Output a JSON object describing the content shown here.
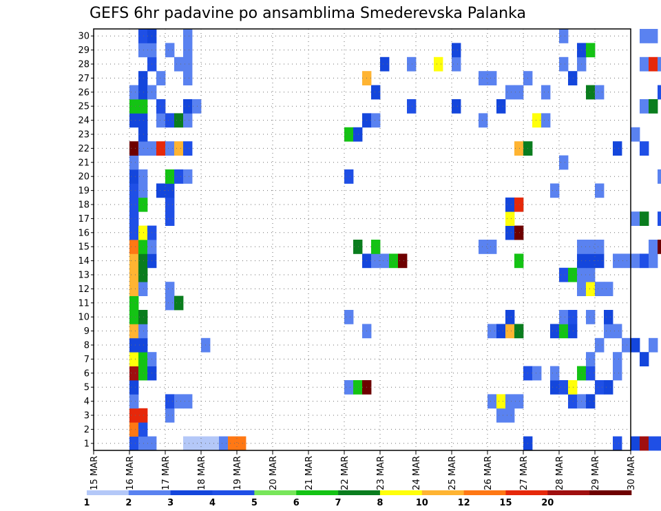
{
  "chart_data": {
    "type": "heatmap",
    "title": "GEFS 6hr padavine po ansamblima Smederevska Palanka",
    "xlabel": "",
    "ylabel": "",
    "x_ticks": [
      "15 MAR",
      "16 MAR",
      "17 MAR",
      "18 MAR",
      "19 MAR",
      "20 MAR",
      "21 MAR",
      "22 MAR",
      "23 MAR",
      "24 MAR",
      "25 MAR",
      "26 MAR",
      "27 MAR",
      "28 MAR",
      "29 MAR",
      "30 MAR"
    ],
    "y_ticks": [
      "1",
      "2",
      "3",
      "4",
      "5",
      "6",
      "7",
      "8",
      "9",
      "10",
      "11",
      "12",
      "13",
      "14",
      "15",
      "16",
      "17",
      "18",
      "19",
      "20",
      "21",
      "22",
      "23",
      "24",
      "25",
      "26",
      "27",
      "28",
      "29",
      "30"
    ],
    "x_range": [
      "15 MAR 00z",
      "30 MAR 00z"
    ],
    "y_range": [
      0,
      30
    ],
    "steps_per_day": 4,
    "grid": true,
    "colorbar": {
      "position": "bottom",
      "labels": [
        "1",
        "2",
        "3",
        "4",
        "5",
        "6",
        "7",
        "8",
        "10",
        "12",
        "15",
        "20"
      ],
      "colors": [
        "#b4c8f8",
        "#5a82f0",
        "#1446dc",
        "#1f4fe6",
        "#78e65a",
        "#14c314",
        "#0a7d1e",
        "#ffff0a",
        "#ffb432",
        "#ff7814",
        "#e6280a",
        "#a00f0f",
        "#6e0000"
      ]
    },
    "cells": [
      {
        "m": 1,
        "s": [
          [
            4,
            3
          ],
          [
            5,
            1
          ],
          [
            6,
            1
          ],
          [
            10,
            0
          ],
          [
            11,
            0
          ],
          [
            12,
            0
          ],
          [
            13,
            0
          ],
          [
            14,
            1
          ],
          [
            15,
            9
          ],
          [
            16,
            9
          ]
        ]
      },
      {
        "m": 2,
        "s": [
          [
            4,
            9
          ],
          [
            5,
            3
          ]
        ]
      },
      {
        "m": 3,
        "s": [
          [
            4,
            10
          ],
          [
            5,
            10
          ],
          [
            8,
            1
          ]
        ]
      },
      {
        "m": 4,
        "s": [
          [
            4,
            1
          ],
          [
            8,
            3
          ],
          [
            9,
            1
          ],
          [
            10,
            1
          ]
        ]
      },
      {
        "m": 5,
        "s": [
          [
            4,
            2
          ]
        ]
      },
      {
        "m": 6,
        "s": [
          [
            4,
            11
          ],
          [
            5,
            5
          ],
          [
            6,
            2
          ]
        ]
      },
      {
        "m": 7,
        "s": [
          [
            4,
            7
          ],
          [
            5,
            5
          ],
          [
            6,
            1
          ]
        ]
      },
      {
        "m": 8,
        "s": [
          [
            4,
            2
          ],
          [
            5,
            2
          ],
          [
            12,
            1
          ]
        ]
      },
      {
        "m": 9,
        "s": [
          [
            4,
            8
          ],
          [
            5,
            1
          ]
        ]
      },
      {
        "m": 10,
        "s": [
          [
            4,
            5
          ],
          [
            5,
            6
          ]
        ]
      },
      {
        "m": 11,
        "s": [
          [
            4,
            5
          ],
          [
            8,
            1
          ],
          [
            9,
            6
          ]
        ]
      },
      {
        "m": 12,
        "s": [
          [
            4,
            8
          ],
          [
            5,
            1
          ],
          [
            8,
            1
          ]
        ]
      },
      {
        "m": 13,
        "s": [
          [
            4,
            8
          ],
          [
            5,
            6
          ]
        ]
      },
      {
        "m": 14,
        "s": [
          [
            4,
            8
          ],
          [
            5,
            6
          ],
          [
            6,
            2
          ]
        ]
      },
      {
        "m": 15,
        "s": [
          [
            4,
            9
          ],
          [
            5,
            5
          ],
          [
            6,
            1
          ]
        ]
      },
      {
        "m": 16,
        "s": [
          [
            4,
            3
          ],
          [
            5,
            7
          ],
          [
            6,
            3
          ]
        ]
      },
      {
        "m": 17,
        "s": [
          [
            4,
            3
          ],
          [
            8,
            3
          ]
        ]
      },
      {
        "m": 18,
        "s": [
          [
            4,
            3
          ],
          [
            5,
            5
          ],
          [
            8,
            3
          ]
        ]
      },
      {
        "m": 19,
        "s": [
          [
            4,
            3
          ],
          [
            5,
            1
          ],
          [
            7,
            2
          ],
          [
            8,
            2
          ]
        ]
      },
      {
        "m": 20,
        "s": [
          [
            4,
            2
          ],
          [
            5,
            1
          ],
          [
            8,
            5
          ],
          [
            9,
            3
          ],
          [
            10,
            1
          ]
        ]
      },
      {
        "m": 21,
        "s": [
          [
            4,
            1
          ]
        ]
      },
      {
        "m": 22,
        "s": [
          [
            4,
            12
          ],
          [
            5,
            1
          ],
          [
            6,
            1
          ],
          [
            7,
            10
          ],
          [
            8,
            1
          ],
          [
            9,
            8
          ],
          [
            10,
            3
          ]
        ]
      },
      {
        "m": 23,
        "s": [
          [
            5,
            2
          ]
        ]
      },
      {
        "m": 24,
        "s": [
          [
            4,
            2
          ],
          [
            5,
            2
          ],
          [
            7,
            1
          ],
          [
            8,
            3
          ],
          [
            9,
            6
          ],
          [
            10,
            1
          ]
        ]
      },
      {
        "m": 25,
        "s": [
          [
            4,
            5
          ],
          [
            5,
            5
          ],
          [
            7,
            3
          ],
          [
            10,
            2
          ],
          [
            11,
            1
          ]
        ]
      },
      {
        "m": 26,
        "s": [
          [
            4,
            1
          ],
          [
            5,
            2
          ],
          [
            6,
            1
          ]
        ]
      },
      {
        "m": 27,
        "s": [
          [
            5,
            2
          ],
          [
            7,
            1
          ],
          [
            10,
            1
          ]
        ]
      },
      {
        "m": 28,
        "s": [
          [
            6,
            3
          ],
          [
            9,
            1
          ],
          [
            10,
            1
          ]
        ]
      },
      {
        "m": 29,
        "s": [
          [
            5,
            1
          ],
          [
            6,
            1
          ],
          [
            8,
            1
          ],
          [
            10,
            1
          ]
        ]
      },
      {
        "m": 30,
        "s": [
          [
            5,
            3
          ],
          [
            6,
            2
          ],
          [
            10,
            1
          ]
        ]
      }
    ],
    "cells_late": [
      {
        "m": 1,
        "s": [
          [
            48,
            2
          ],
          [
            58,
            3
          ],
          [
            60,
            2
          ],
          [
            61,
            11
          ],
          [
            62,
            3
          ],
          [
            63,
            3
          ],
          [
            64,
            1
          ]
        ]
      },
      {
        "m": 3,
        "s": [
          [
            45,
            1
          ],
          [
            46,
            1
          ]
        ]
      },
      {
        "m": 4,
        "s": [
          [
            44,
            1
          ],
          [
            45,
            7
          ],
          [
            46,
            1
          ],
          [
            47,
            1
          ],
          [
            53,
            3
          ],
          [
            54,
            1
          ],
          [
            55,
            2
          ]
        ]
      },
      {
        "m": 5,
        "s": [
          [
            28,
            1
          ],
          [
            29,
            5
          ],
          [
            30,
            12
          ],
          [
            51,
            2
          ],
          [
            52,
            3
          ],
          [
            53,
            7
          ],
          [
            56,
            3
          ],
          [
            57,
            2
          ]
        ]
      },
      {
        "m": 6,
        "s": [
          [
            48,
            3
          ],
          [
            49,
            1
          ],
          [
            51,
            1
          ],
          [
            54,
            5
          ],
          [
            55,
            3
          ],
          [
            58,
            1
          ]
        ]
      },
      {
        "m": 7,
        "s": [
          [
            55,
            1
          ],
          [
            58,
            1
          ],
          [
            61,
            2
          ]
        ]
      },
      {
        "m": 8,
        "s": [
          [
            56,
            1
          ],
          [
            59,
            1
          ],
          [
            60,
            2
          ],
          [
            62,
            1
          ]
        ]
      },
      {
        "m": 9,
        "s": [
          [
            30,
            1
          ],
          [
            44,
            1
          ],
          [
            45,
            2
          ],
          [
            46,
            8
          ],
          [
            47,
            6
          ],
          [
            51,
            2
          ],
          [
            52,
            5
          ],
          [
            53,
            2
          ],
          [
            57,
            1
          ],
          [
            58,
            1
          ]
        ]
      },
      {
        "m": 10,
        "s": [
          [
            28,
            1
          ],
          [
            46,
            2
          ],
          [
            52,
            1
          ],
          [
            53,
            3
          ],
          [
            55,
            1
          ],
          [
            57,
            2
          ]
        ]
      },
      {
        "m": 12,
        "s": [
          [
            54,
            1
          ],
          [
            55,
            7
          ],
          [
            56,
            1
          ],
          [
            57,
            1
          ]
        ]
      },
      {
        "m": 13,
        "s": [
          [
            52,
            3
          ],
          [
            53,
            5
          ],
          [
            54,
            1
          ],
          [
            55,
            1
          ]
        ]
      },
      {
        "m": 14,
        "s": [
          [
            30,
            2
          ],
          [
            31,
            1
          ],
          [
            32,
            1
          ],
          [
            33,
            5
          ],
          [
            34,
            12
          ],
          [
            47,
            5
          ],
          [
            54,
            2
          ],
          [
            55,
            2
          ],
          [
            56,
            2
          ],
          [
            58,
            1
          ],
          [
            59,
            1
          ],
          [
            60,
            1
          ],
          [
            61,
            3
          ],
          [
            62,
            1
          ]
        ]
      },
      {
        "m": 15,
        "s": [
          [
            29,
            6
          ],
          [
            31,
            5
          ],
          [
            43,
            1
          ],
          [
            44,
            1
          ],
          [
            54,
            1
          ],
          [
            55,
            1
          ],
          [
            56,
            1
          ],
          [
            62,
            1
          ],
          [
            63,
            12
          ]
        ]
      },
      {
        "m": 16,
        "s": [
          [
            46,
            2
          ],
          [
            47,
            12
          ]
        ]
      },
      {
        "m": 17,
        "s": [
          [
            46,
            7
          ],
          [
            60,
            1
          ],
          [
            61,
            6
          ],
          [
            63,
            3
          ],
          [
            64,
            11
          ]
        ]
      },
      {
        "m": 18,
        "s": [
          [
            46,
            2
          ],
          [
            47,
            10
          ]
        ]
      },
      {
        "m": 19,
        "s": [
          [
            51,
            1
          ],
          [
            56,
            1
          ]
        ]
      },
      {
        "m": 20,
        "s": [
          [
            28,
            3
          ],
          [
            63,
            1
          ]
        ]
      },
      {
        "m": 21,
        "s": [
          [
            52,
            1
          ]
        ]
      },
      {
        "m": 22,
        "s": [
          [
            47,
            8
          ],
          [
            48,
            6
          ],
          [
            58,
            2
          ],
          [
            61,
            3
          ]
        ]
      },
      {
        "m": 23,
        "s": [
          [
            28,
            5
          ],
          [
            29,
            2
          ],
          [
            60,
            1
          ]
        ]
      },
      {
        "m": 24,
        "s": [
          [
            30,
            2
          ],
          [
            31,
            1
          ],
          [
            43,
            1
          ],
          [
            49,
            7
          ],
          [
            50,
            1
          ]
        ]
      },
      {
        "m": 25,
        "s": [
          [
            35,
            3
          ],
          [
            40,
            2
          ],
          [
            45,
            2
          ],
          [
            61,
            1
          ],
          [
            62,
            6
          ]
        ]
      },
      {
        "m": 26,
        "s": [
          [
            31,
            2
          ],
          [
            46,
            1
          ],
          [
            47,
            1
          ],
          [
            50,
            1
          ],
          [
            55,
            6
          ],
          [
            56,
            1
          ],
          [
            63,
            3
          ]
        ]
      },
      {
        "m": 27,
        "s": [
          [
            30,
            8
          ],
          [
            43,
            1
          ],
          [
            44,
            1
          ],
          [
            48,
            1
          ],
          [
            53,
            2
          ]
        ]
      },
      {
        "m": 28,
        "s": [
          [
            32,
            2
          ],
          [
            35,
            1
          ],
          [
            38,
            7
          ],
          [
            40,
            1
          ],
          [
            52,
            1
          ],
          [
            54,
            1
          ],
          [
            61,
            1
          ],
          [
            62,
            10
          ],
          [
            63,
            1
          ],
          [
            64,
            2
          ]
        ]
      },
      {
        "m": 29,
        "s": [
          [
            40,
            2
          ],
          [
            54,
            2
          ],
          [
            55,
            5
          ]
        ]
      },
      {
        "m": 30,
        "s": [
          [
            52,
            1
          ],
          [
            61,
            1
          ],
          [
            62,
            1
          ]
        ]
      }
    ]
  }
}
